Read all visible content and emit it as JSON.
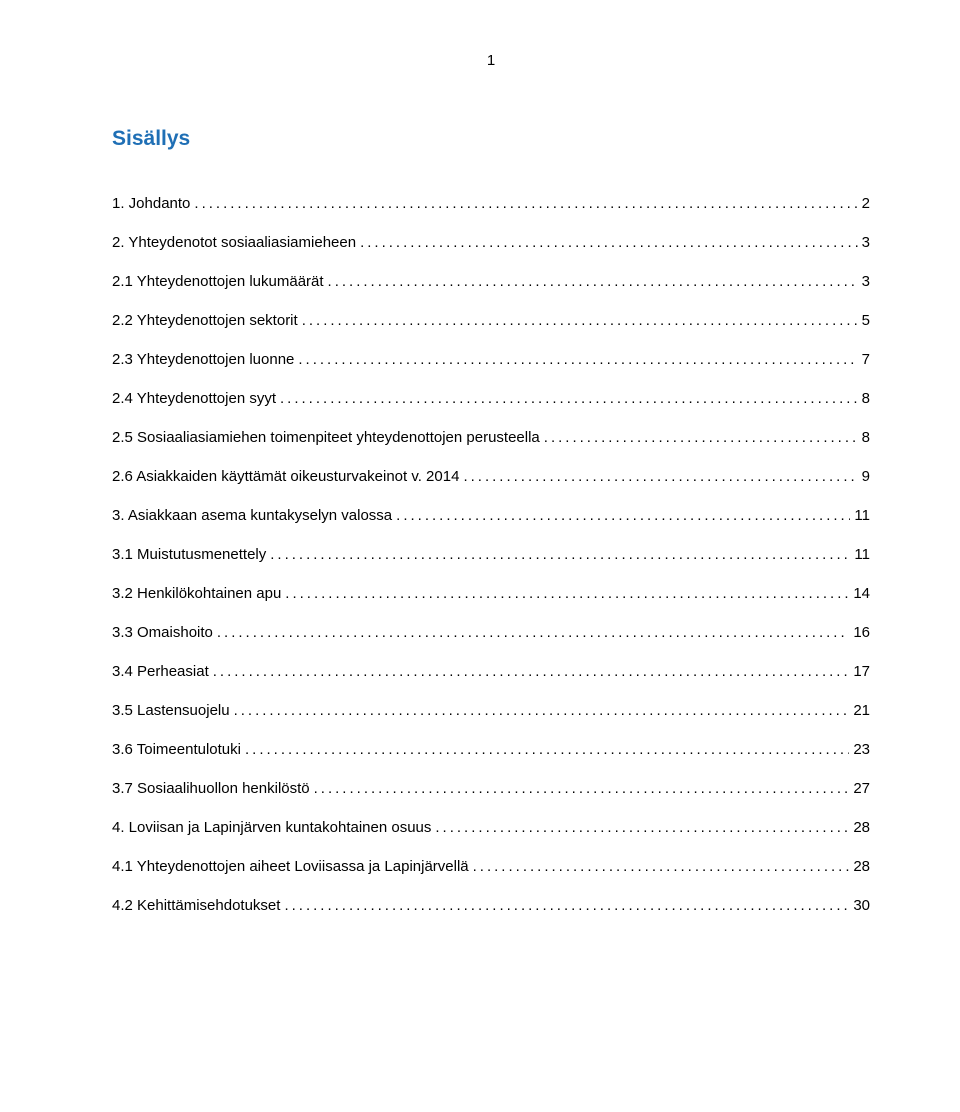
{
  "page_number": "1",
  "toc_title": "Sisällys",
  "colors": {
    "title": "#1f6fb5",
    "text": "#000000",
    "background": "#ffffff"
  },
  "typography": {
    "title_fontsize": 21,
    "entry_fontsize": 15,
    "page_number_fontsize": 15,
    "font_family": "Arial"
  },
  "entries": [
    {
      "label": "1.   Johdanto",
      "page": "2",
      "level": 0
    },
    {
      "label": "2.   Yhteydenotot sosiaaliasiamieheen",
      "page": "3",
      "level": 0
    },
    {
      "label": "2.1 Yhteydenottojen lukumäärät",
      "page": "3",
      "level": 1
    },
    {
      "label": "2.2 Yhteydenottojen sektorit",
      "page": "5",
      "level": 1
    },
    {
      "label": "2.3 Yhteydenottojen luonne",
      "page": "7",
      "level": 1
    },
    {
      "label": "2.4 Yhteydenottojen syyt",
      "page": "8",
      "level": 1
    },
    {
      "label": "2.5 Sosiaaliasiamiehen toimenpiteet yhteydenottojen perusteella",
      "page": "8",
      "level": 1
    },
    {
      "label": "2.6 Asiakkaiden käyttämät oikeusturvakeinot v. 2014",
      "page": "9",
      "level": 1
    },
    {
      "label": "3.   Asiakkaan asema kuntakyselyn valossa",
      "page": "11",
      "level": 0
    },
    {
      "label": "3.1 Muistutusmenettely",
      "page": "11",
      "level": 1
    },
    {
      "label": "3.2 Henkilökohtainen apu",
      "page": "14",
      "level": 1
    },
    {
      "label": "3.3 Omaishoito",
      "page": "16",
      "level": 1
    },
    {
      "label": "3.4 Perheasiat",
      "page": "17",
      "level": 1
    },
    {
      "label": "3.5 Lastensuojelu",
      "page": "21",
      "level": 1
    },
    {
      "label": "3.6 Toimeentulotuki",
      "page": "23",
      "level": 1
    },
    {
      "label": "3.7 Sosiaalihuollon henkilöstö",
      "page": "27",
      "level": 1
    },
    {
      "label": "4.   Loviisan ja Lapinjärven kuntakohtainen osuus",
      "page": "28",
      "level": 0
    },
    {
      "label": "4.1 Yhteydenottojen aiheet Loviisassa ja Lapinjärvellä",
      "page": "28",
      "level": 1
    },
    {
      "label": "4.2 Kehittämisehdotukset",
      "page": "30",
      "level": 1
    }
  ]
}
